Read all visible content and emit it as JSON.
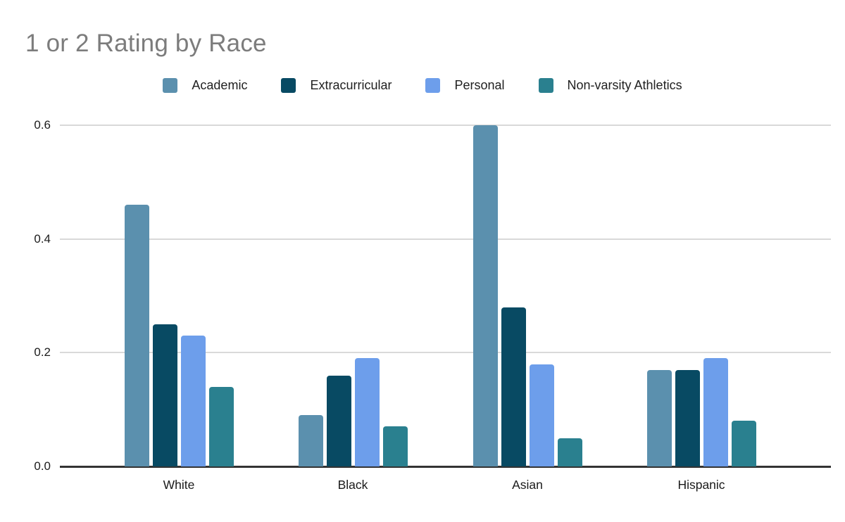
{
  "page": {
    "background": "#ffffff"
  },
  "chart_data": {
    "type": "bar",
    "title": "1 or 2 Rating by Race",
    "title_color": "#7c7c7c",
    "categories": [
      "White",
      "Black",
      "Asian",
      "Hispanic"
    ],
    "series": [
      {
        "name": "Academic",
        "color": "#5b90ae",
        "values": [
          0.46,
          0.09,
          0.6,
          0.17
        ]
      },
      {
        "name": "Extracurricular",
        "color": "#084a63",
        "values": [
          0.25,
          0.16,
          0.28,
          0.17
        ]
      },
      {
        "name": "Personal",
        "color": "#6d9eeb",
        "values": [
          0.23,
          0.19,
          0.18,
          0.19
        ]
      },
      {
        "name": "Non-varsity Athletics",
        "color": "#2a808f",
        "values": [
          0.14,
          0.07,
          0.05,
          0.08
        ]
      }
    ],
    "xlabel": "",
    "ylabel": "",
    "ylim": [
      0,
      0.6
    ],
    "yticks": [
      "0.0",
      "0.2",
      "0.4",
      "0.6"
    ],
    "ytick_values": [
      0.0,
      0.2,
      0.4,
      0.6
    ],
    "grid": true,
    "gridline_color": "#d9d9d9",
    "axis_line_color": "#333333",
    "legend_position": "top",
    "label_color": "#1a1a1a"
  }
}
